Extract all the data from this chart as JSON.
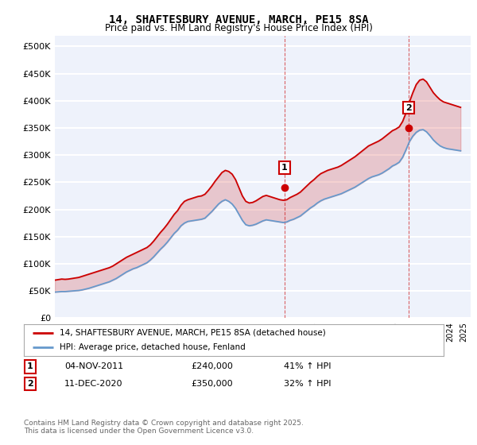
{
  "title": "14, SHAFTESBURY AVENUE, MARCH, PE15 8SA",
  "subtitle": "Price paid vs. HM Land Registry's House Price Index (HPI)",
  "ylabel_ticks": [
    "£0",
    "£50K",
    "£100K",
    "£150K",
    "£200K",
    "£250K",
    "£300K",
    "£350K",
    "£400K",
    "£450K",
    "£500K"
  ],
  "ytick_values": [
    0,
    50000,
    100000,
    150000,
    200000,
    250000,
    300000,
    350000,
    400000,
    450000,
    500000
  ],
  "ylim": [
    0,
    520000
  ],
  "xlim_start": 1995.0,
  "xlim_end": 2025.5,
  "plot_bg_color": "#eef2fb",
  "grid_color": "#ffffff",
  "red_line_color": "#cc0000",
  "blue_line_color": "#6699cc",
  "marker1_x": 2011.84,
  "marker1_y": 240000,
  "marker1_label": "1",
  "marker2_x": 2020.95,
  "marker2_y": 350000,
  "marker2_label": "2",
  "legend_line1": "14, SHAFTESBURY AVENUE, MARCH, PE15 8SA (detached house)",
  "legend_line2": "HPI: Average price, detached house, Fenland",
  "copyright_text": "Contains HM Land Registry data © Crown copyright and database right 2025.\nThis data is licensed under the Open Government Licence v3.0.",
  "hpi_years": [
    1995.0,
    1995.25,
    1995.5,
    1995.75,
    1996.0,
    1996.25,
    1996.5,
    1996.75,
    1997.0,
    1997.25,
    1997.5,
    1997.75,
    1998.0,
    1998.25,
    1998.5,
    1998.75,
    1999.0,
    1999.25,
    1999.5,
    1999.75,
    2000.0,
    2000.25,
    2000.5,
    2000.75,
    2001.0,
    2001.25,
    2001.5,
    2001.75,
    2002.0,
    2002.25,
    2002.5,
    2002.75,
    2003.0,
    2003.25,
    2003.5,
    2003.75,
    2004.0,
    2004.25,
    2004.5,
    2004.75,
    2005.0,
    2005.25,
    2005.5,
    2005.75,
    2006.0,
    2006.25,
    2006.5,
    2006.75,
    2007.0,
    2007.25,
    2007.5,
    2007.75,
    2008.0,
    2008.25,
    2008.5,
    2008.75,
    2009.0,
    2009.25,
    2009.5,
    2009.75,
    2010.0,
    2010.25,
    2010.5,
    2010.75,
    2011.0,
    2011.25,
    2011.5,
    2011.75,
    2012.0,
    2012.25,
    2012.5,
    2012.75,
    2013.0,
    2013.25,
    2013.5,
    2013.75,
    2014.0,
    2014.25,
    2014.5,
    2014.75,
    2015.0,
    2015.25,
    2015.5,
    2015.75,
    2016.0,
    2016.25,
    2016.5,
    2016.75,
    2017.0,
    2017.25,
    2017.5,
    2017.75,
    2018.0,
    2018.25,
    2018.5,
    2018.75,
    2019.0,
    2019.25,
    2019.5,
    2019.75,
    2020.0,
    2020.25,
    2020.5,
    2020.75,
    2021.0,
    2021.25,
    2021.5,
    2021.75,
    2022.0,
    2022.25,
    2022.5,
    2022.75,
    2023.0,
    2023.25,
    2023.5,
    2023.75,
    2024.0,
    2024.25,
    2024.5,
    2024.75
  ],
  "red_hpi_values": [
    70000,
    71000,
    72000,
    71500,
    72000,
    73000,
    74000,
    75000,
    77000,
    79000,
    81000,
    83000,
    85000,
    87000,
    89000,
    91000,
    93000,
    96000,
    100000,
    104000,
    108000,
    112000,
    115000,
    118000,
    121000,
    124000,
    127000,
    130000,
    135000,
    142000,
    150000,
    158000,
    165000,
    173000,
    182000,
    191000,
    198000,
    208000,
    215000,
    218000,
    220000,
    222000,
    224000,
    225000,
    228000,
    235000,
    243000,
    252000,
    260000,
    268000,
    272000,
    270000,
    265000,
    255000,
    240000,
    225000,
    215000,
    212000,
    213000,
    216000,
    220000,
    224000,
    226000,
    224000,
    222000,
    220000,
    218000,
    217000,
    218000,
    222000,
    225000,
    228000,
    232000,
    238000,
    244000,
    250000,
    255000,
    261000,
    266000,
    269000,
    272000,
    274000,
    276000,
    278000,
    281000,
    285000,
    289000,
    293000,
    297000,
    302000,
    307000,
    312000,
    317000,
    320000,
    323000,
    326000,
    330000,
    335000,
    340000,
    345000,
    348000,
    352000,
    362000,
    378000,
    398000,
    415000,
    430000,
    438000,
    440000,
    435000,
    425000,
    415000,
    408000,
    402000,
    398000,
    396000,
    394000,
    392000,
    390000,
    388000
  ],
  "blue_hpi_values": [
    48000,
    48500,
    49000,
    49000,
    49500,
    50000,
    50500,
    51000,
    52000,
    53500,
    55000,
    57000,
    59000,
    61000,
    63000,
    65000,
    67000,
    70000,
    73000,
    77000,
    81000,
    85000,
    88000,
    91000,
    93000,
    96000,
    99000,
    102000,
    107000,
    113000,
    120000,
    127000,
    133000,
    140000,
    148000,
    156000,
    162000,
    170000,
    175000,
    178000,
    179000,
    180000,
    181000,
    182000,
    184000,
    190000,
    196000,
    203000,
    210000,
    215000,
    218000,
    215000,
    210000,
    202000,
    191000,
    180000,
    172000,
    170000,
    171000,
    173000,
    176000,
    179000,
    181000,
    180000,
    179000,
    178000,
    177000,
    176000,
    177000,
    180000,
    182000,
    185000,
    188000,
    193000,
    198000,
    203000,
    207000,
    212000,
    216000,
    219000,
    221000,
    223000,
    225000,
    227000,
    229000,
    232000,
    235000,
    238000,
    241000,
    245000,
    249000,
    253000,
    257000,
    260000,
    262000,
    264000,
    267000,
    271000,
    275000,
    280000,
    283000,
    287000,
    296000,
    310000,
    325000,
    335000,
    342000,
    346000,
    347000,
    343000,
    336000,
    328000,
    322000,
    317000,
    314000,
    312000,
    311000,
    310000,
    309000,
    308000
  ]
}
